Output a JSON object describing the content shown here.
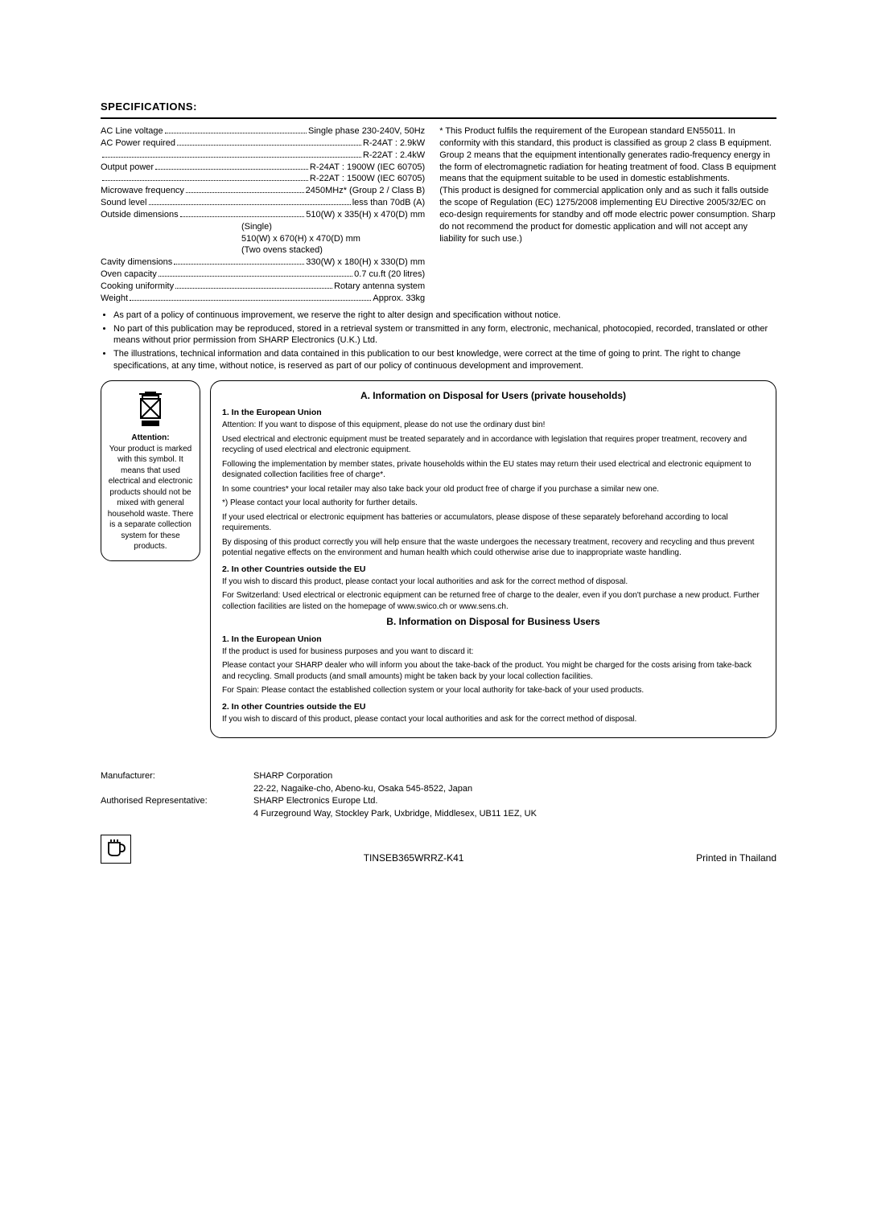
{
  "title": "SPECIFICATIONS:",
  "specs": {
    "rows": [
      {
        "label": "AC Line voltage",
        "value": "Single phase 230-240V, 50Hz"
      },
      {
        "label": "AC Power required",
        "value": "R-24AT : 2.9kW"
      },
      {
        "label": "",
        "value": "R-22AT : 2.4kW"
      },
      {
        "label": "Output power",
        "value": "R-24AT : 1900W (IEC 60705)"
      },
      {
        "label": "",
        "value": "R-22AT : 1500W (IEC 60705)"
      },
      {
        "label": "Microwave frequency",
        "value": "2450MHz* (Group 2 / Class B)"
      },
      {
        "label": "Sound level",
        "value": "less than 70dB (A)"
      },
      {
        "label": "Outside dimensions",
        "value": "510(W) x 335(H) x 470(D) mm"
      },
      {
        "label": "",
        "value": "(Single)",
        "plain": true
      },
      {
        "label": "",
        "value": "510(W) x 670(H) x 470(D) mm",
        "plain": true
      },
      {
        "label": "",
        "value": "(Two ovens stacked)",
        "plain": true
      },
      {
        "label": "Cavity dimensions",
        "value": "330(W) x 180(H) x 330(D) mm"
      },
      {
        "label": "Oven capacity",
        "value": "0.7 cu.ft (20 litres)"
      },
      {
        "label": "Cooking uniformity",
        "value": "Rotary antenna system"
      },
      {
        "label": "Weight",
        "value": "Approx. 33kg"
      }
    ]
  },
  "asterisk_note": "* This Product fulfils the requirement of the European standard EN55011. In conformity with this standard, this product is classified as group 2 class B equipment. Group 2 means that the equipment intentionally generates radio-frequency energy in the form of electromagnetic radiation for heating treatment of food. Class B equipment means that the equipment suitable to be used in domestic establishments.",
  "asterisk_note2": "(This product is designed for commercial application only and as such it falls outside the scope of Regulation (EC) 1275/2008 implementing EU Directive 2005/32/EC on eco-design requirements for standby and off mode electric power consumption. Sharp do not recommend the product for domestic application and will not accept any liability for such use.)",
  "bullets": [
    "As part of a policy of continuous improvement, we reserve the right to alter design and specification without notice.",
    "No part of this publication may be reproduced, stored in a retrieval system or transmitted in any form, electronic, mechanical, photocopied, recorded, translated or other means without prior permission from SHARP Electronics (U.K.) Ltd.",
    "The illustrations, technical information and data contained in this publication to our best knowledge, were correct at the time of going to print. The right to change specifications, at any time, without notice, is reserved as part of our policy of continuous development and improvement."
  ],
  "attention": {
    "title": "Attention:",
    "text": "Your product is marked with this symbol. It means that used electrical and electronic products should not be mixed with general household waste. There is a separate collection system for these products."
  },
  "disposalA": {
    "title": "A. Information on Disposal for Users (private households)",
    "h1": "1. In the European Union",
    "p1": "Attention: If you want to dispose of this equipment, please do not use the ordinary dust bin!",
    "p2": "Used electrical and electronic equipment must be treated separately and in accordance with legislation that requires proper treatment, recovery and recycling of used electrical and electronic equipment.",
    "p3": "Following the implementation by member states, private households within the EU states may return their used electrical and electronic equipment to designated collection facilities free of charge*.",
    "p4": "In some countries* your local retailer may also take back your old product free of charge if you purchase a similar new one.",
    "p5": "*) Please contact your local authority for further details.",
    "p6": "If your used electrical or electronic equipment has batteries or accumulators, please dispose of these separately beforehand according to local requirements.",
    "p7": "By disposing of this product correctly you will help ensure that the waste undergoes the necessary treatment, recovery and recycling and thus prevent potential negative effects on the environment and human health which could otherwise arise due to inappropriate waste handling.",
    "h2": "2. In other Countries outside the EU",
    "p8": "If you wish to discard this product, please contact your local authorities and ask for the correct method of disposal.",
    "p9": "For Switzerland: Used electrical or electronic equipment can be returned free of charge to the dealer, even if you don't purchase a new product. Further collection facilities are listed on the homepage of www.swico.ch or www.sens.ch."
  },
  "disposalB": {
    "title": "B. Information on Disposal for Business Users",
    "h1": "1. In the European Union",
    "p1": "If the product is used for business purposes and you want to discard it:",
    "p2": "Please contact your SHARP dealer who will inform you about the take-back of the product. You might be charged for the costs arising from take-back and recycling. Small products (and small amounts) might be taken back by your local collection facilities.",
    "p3": "For Spain: Please contact the established collection system or your local authority for take-back of your used products.",
    "h2": "2. In other Countries outside the EU",
    "p4": "If you wish to discard of this product, please contact your local authorities and ask for the correct method of disposal."
  },
  "footer": {
    "manu_label": "Manufacturer:",
    "manu_val1": "SHARP Corporation",
    "manu_val2": "22-22, Nagaike-cho, Abeno-ku, Osaka 545-8522, Japan",
    "auth_label": "Authorised Representative:",
    "auth_val1": "SHARP Electronics Europe Ltd.",
    "auth_val2": "4 Furzeground Way, Stockley Park, Uxbridge, Middlesex, UB11  1EZ, UK",
    "code": "TINSEB365WRRZ-K41",
    "printed": "Printed in  Thailand"
  }
}
